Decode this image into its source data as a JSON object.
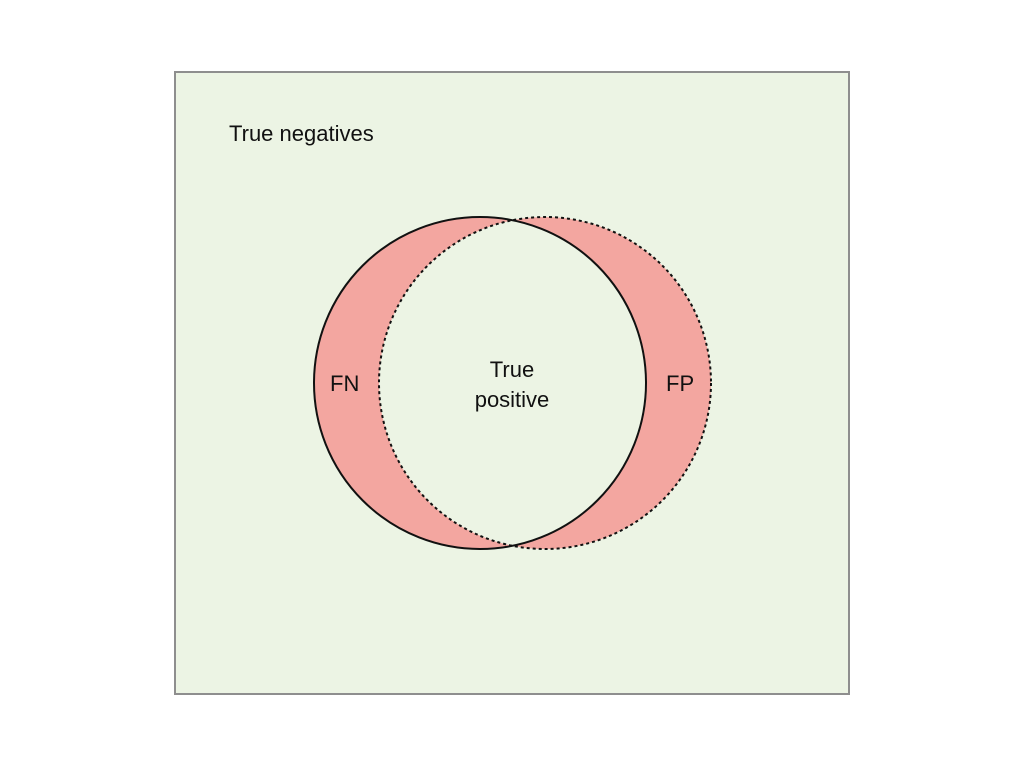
{
  "diagram": {
    "true_negatives": "True negatives",
    "true_positive_line1": "True",
    "true_positive_line2": "positive",
    "false_negative": "FN",
    "false_positive": "FP"
  },
  "colors": {
    "background": "#ecf4e4",
    "frame": "#8e8e8e",
    "error_region": "#f3a6a0",
    "outline": "#111111"
  }
}
